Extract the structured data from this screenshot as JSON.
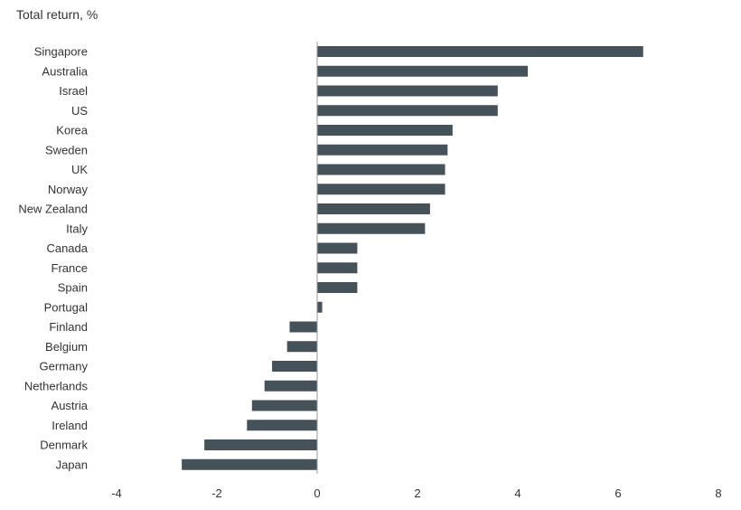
{
  "chart_data": {
    "type": "bar",
    "orientation": "horizontal",
    "title": "Total return, %",
    "xlabel": "",
    "ylabel": "",
    "categories": [
      "Singapore",
      "Australia",
      "Israel",
      "US",
      "Korea",
      "Sweden",
      "UK",
      "Norway",
      "New Zealand",
      "Italy",
      "Canada",
      "France",
      "Spain",
      "Portugal",
      "Finland",
      "Belgium",
      "Germany",
      "Netherlands",
      "Austria",
      "Ireland",
      "Denmark",
      "Japan"
    ],
    "values": [
      6.5,
      4.2,
      3.6,
      3.6,
      2.7,
      2.6,
      2.55,
      2.55,
      2.25,
      2.15,
      0.8,
      0.8,
      0.8,
      0.1,
      -0.55,
      -0.6,
      -0.9,
      -1.05,
      -1.3,
      -1.4,
      -2.25,
      -2.7
    ],
    "xlim": [
      -4,
      8
    ],
    "xticks": [
      -4,
      -2,
      0,
      2,
      4,
      6,
      8
    ],
    "grid": false,
    "legend": "none",
    "bar_color": "#46525a"
  }
}
